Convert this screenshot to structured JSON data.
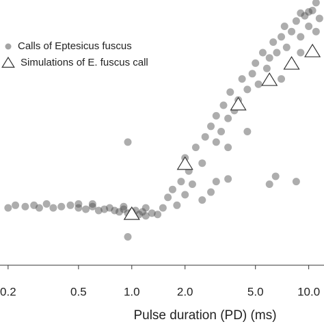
{
  "chart_data": {
    "type": "scatter",
    "xlabel": "Pulse duration (PD) (ms)",
    "xscale": "log",
    "xlim": [
      0.18,
      12.2
    ],
    "xticks": [
      {
        "value": 0.2,
        "label": "0.2"
      },
      0.5,
      {
        "value": 1,
        "label": "1.0"
      },
      {
        "value": 2,
        "label": "2.0"
      },
      {
        "value": 5,
        "label": "5.0"
      },
      {
        "value": 10,
        "label": "10.0"
      }
    ],
    "ylim": [
      0,
      100
    ],
    "legend": "upper left",
    "series": [
      {
        "name": "Calls of Eptesicus fuscus",
        "marker": "circle",
        "color": "#4a4a4a",
        "x": [
          0.2,
          0.22,
          0.25,
          0.28,
          0.3,
          0.33,
          0.36,
          0.4,
          0.45,
          0.5,
          0.55,
          0.6,
          0.65,
          0.7,
          0.75,
          0.8,
          0.85,
          0.9,
          0.95,
          1.0,
          1.05,
          1.1,
          1.15,
          1.2,
          1.3,
          1.4,
          0.6,
          0.5,
          0.9,
          1.2,
          0.95,
          0.95,
          1.5,
          1.6,
          1.7,
          1.8,
          1.9,
          2.0,
          2.1,
          2.2,
          2.0,
          2.3,
          2.5,
          2.6,
          2.8,
          3.0,
          3.0,
          3.2,
          3.3,
          3.5,
          3.6,
          3.8,
          4.0,
          4.2,
          4.5,
          4.8,
          5.0,
          5.2,
          5.5,
          5.8,
          6.0,
          6.3,
          6.6,
          7.0,
          7.3,
          7.5,
          8.0,
          8.5,
          9.0,
          9.5,
          10.0,
          10.5,
          11.0,
          11.5,
          7.0,
          8.0,
          9.0,
          3.0,
          3.5,
          6.0,
          6.5,
          8.5,
          2.5,
          2.8,
          3.5,
          4.5,
          9.0,
          10.0,
          11.0
        ],
        "values": [
          21,
          22,
          21.5,
          22,
          21,
          22.5,
          21,
          21.5,
          22,
          21,
          20.5,
          21.5,
          20,
          20.5,
          21,
          20,
          19.5,
          20.5,
          19,
          19.5,
          20,
          18.5,
          19.5,
          18,
          19,
          18.5,
          22.5,
          22.5,
          21.5,
          21,
          10,
          46,
          21,
          25,
          28,
          22,
          31,
          26,
          35,
          30,
          40,
          44,
          38,
          48,
          52,
          46,
          56,
          50,
          60,
          55,
          65,
          58,
          62,
          70,
          66,
          72,
          76,
          68,
          80,
          74,
          78,
          84,
          80,
          86,
          90,
          82,
          88,
          92,
          86,
          94,
          90,
          96,
          88,
          93,
          70,
          76,
          80,
          31,
          32,
          30,
          33,
          31,
          24,
          27,
          44,
          50,
          95,
          95.5,
          99
        ]
      },
      {
        "name": "Simulations of E. fuscus call",
        "marker": "triangle",
        "color": "#ffffff",
        "x": [
          1.0,
          2.0,
          4.0,
          6.0,
          8.0,
          10.5
        ],
        "values": [
          18.7,
          37.7,
          60.3,
          69.6,
          75.8,
          80.5
        ]
      }
    ]
  }
}
